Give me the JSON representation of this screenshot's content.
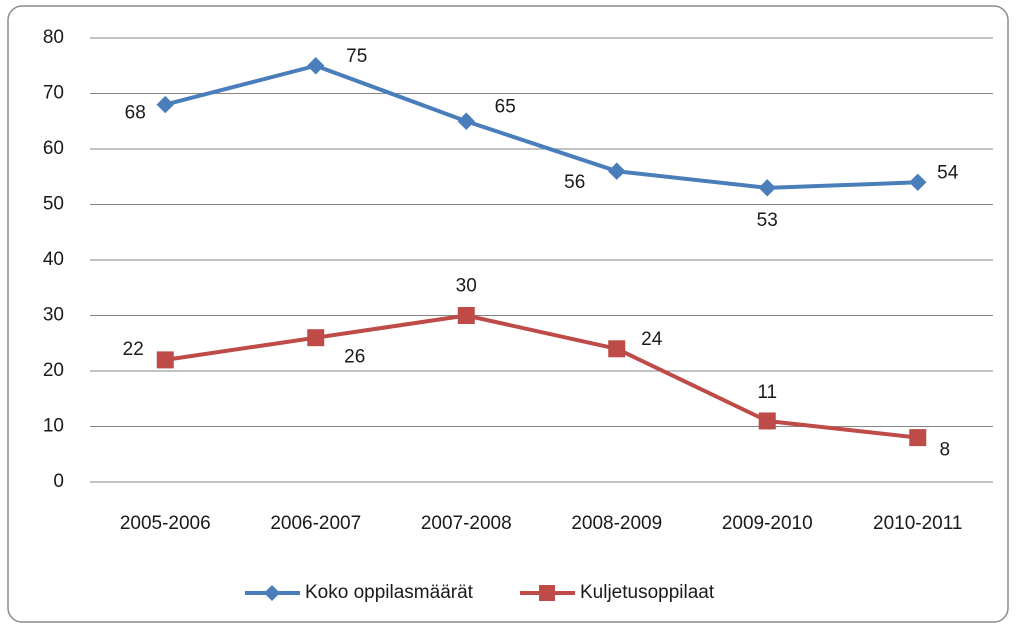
{
  "chart_data": {
    "type": "line",
    "categories": [
      "2005-2006",
      "2006-2007",
      "2007-2008",
      "2008-2009",
      "2009-2010",
      "2010-2011"
    ],
    "series": [
      {
        "name": "Koko oppilasmäärät",
        "color": "#4a7ebb",
        "marker": "diamond",
        "values": [
          68,
          75,
          65,
          56,
          53,
          54
        ]
      },
      {
        "name": "Kuljetusoppilaat",
        "color": "#be4b48",
        "marker": "square",
        "values": [
          22,
          26,
          30,
          24,
          11,
          8
        ]
      }
    ],
    "ylim": [
      0,
      80
    ],
    "yticks": [
      0,
      10,
      20,
      30,
      40,
      50,
      60,
      70,
      80
    ],
    "grid": true,
    "legend": "bottom"
  }
}
